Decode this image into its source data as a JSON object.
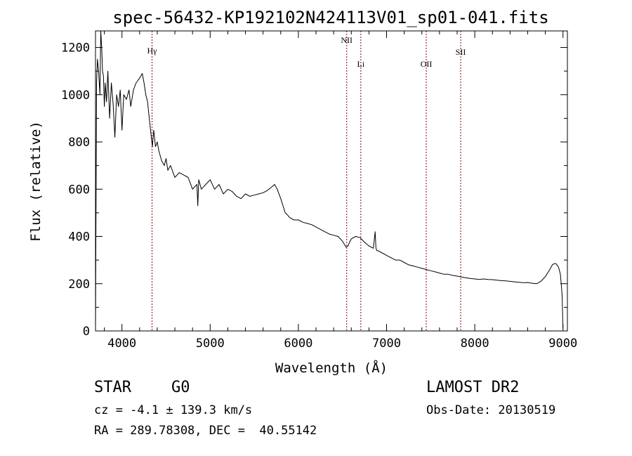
{
  "chart_data": {
    "type": "line",
    "title": "spec-56432-KP192102N424113V01_sp01-041.fits",
    "xlabel": "Wavelength (Å)",
    "ylabel": "Flux (relative)",
    "xlim": [
      3700,
      9050
    ],
    "ylim": [
      0,
      1270
    ],
    "x_ticks": [
      4000,
      5000,
      6000,
      7000,
      8000,
      9000
    ],
    "y_ticks": [
      0,
      200,
      400,
      600,
      800,
      1000,
      1200
    ],
    "grid": false,
    "line_color": "#000000",
    "marker_color": "#8b0000",
    "spectral_lines": [
      {
        "label": "Hγ",
        "x": 4341
      },
      {
        "label": "NII",
        "x": 6548
      },
      {
        "label": "Li",
        "x": 6708
      },
      {
        "label": "OII",
        "x": 7450
      },
      {
        "label": "SII",
        "x": 7840
      }
    ],
    "series": [
      {
        "x": [
          3700,
          3712,
          3722,
          3735,
          3750,
          3760,
          3770,
          3780,
          3790,
          3800,
          3810,
          3825,
          3840,
          3860,
          3880,
          3900,
          3920,
          3940,
          3960,
          3980,
          4000,
          4020,
          4050,
          4080,
          4100,
          4130,
          4160,
          4200,
          4230,
          4250,
          4270,
          4290,
          4310,
          4330,
          4345,
          4360,
          4380,
          4400,
          4420,
          4450,
          4480,
          4500,
          4520,
          4550,
          4600,
          4650,
          4700,
          4750,
          4800,
          4850,
          4860,
          4870,
          4900,
          4950,
          5000,
          5050,
          5100,
          5150,
          5200,
          5250,
          5300,
          5350,
          5400,
          5450,
          5500,
          5550,
          5600,
          5650,
          5700,
          5730,
          5760,
          5800,
          5850,
          5880,
          5900,
          5950,
          6000,
          6050,
          6100,
          6150,
          6200,
          6250,
          6300,
          6350,
          6400,
          6450,
          6500,
          6540,
          6563,
          6580,
          6600,
          6650,
          6700,
          6750,
          6800,
          6850,
          6870,
          6880,
          6890,
          6900,
          6950,
          7000,
          7050,
          7100,
          7150,
          7200,
          7250,
          7300,
          7350,
          7400,
          7450,
          7500,
          7550,
          7600,
          7650,
          7700,
          7750,
          7800,
          7850,
          7900,
          7950,
          8000,
          8050,
          8100,
          8150,
          8200,
          8250,
          8300,
          8350,
          8400,
          8450,
          8500,
          8550,
          8600,
          8650,
          8700,
          8750,
          8800,
          8850,
          8880,
          8900,
          8920,
          8950,
          8970,
          8980,
          8990,
          9000
        ],
        "values": [
          10,
          1050,
          1150,
          1100,
          1000,
          1270,
          1200,
          1100,
          1080,
          950,
          1050,
          970,
          1100,
          900,
          1050,
          960,
          820,
          1000,
          950,
          1020,
          850,
          1000,
          980,
          1020,
          950,
          1020,
          1050,
          1070,
          1090,
          1050,
          1000,
          970,
          900,
          830,
          780,
          850,
          780,
          800,
          760,
          720,
          700,
          730,
          680,
          700,
          650,
          670,
          660,
          650,
          600,
          620,
          530,
          640,
          600,
          620,
          640,
          600,
          620,
          580,
          600,
          590,
          570,
          560,
          580,
          570,
          575,
          580,
          585,
          595,
          610,
          620,
          600,
          560,
          500,
          490,
          480,
          470,
          470,
          460,
          455,
          450,
          440,
          430,
          420,
          410,
          405,
          400,
          380,
          355,
          360,
          375,
          390,
          400,
          395,
          375,
          360,
          350,
          420,
          350,
          340,
          340,
          330,
          320,
          310,
          300,
          300,
          290,
          280,
          275,
          270,
          265,
          260,
          255,
          250,
          245,
          240,
          240,
          235,
          232,
          228,
          225,
          222,
          220,
          218,
          220,
          218,
          217,
          215,
          213,
          212,
          210,
          208,
          206,
          204,
          205,
          202,
          200,
          210,
          230,
          260,
          280,
          285,
          285,
          270,
          240,
          200,
          150,
          10
        ]
      }
    ]
  },
  "info": {
    "object_type": "STAR",
    "subclass": "G0",
    "survey": "LAMOST DR2",
    "redshift_text": "cz = -4.1 ± 139.3 km/s",
    "obs_date_text": "Obs-Date: 20130519",
    "coordinates_text": "RA = 289.78308, DEC =  40.55142"
  }
}
